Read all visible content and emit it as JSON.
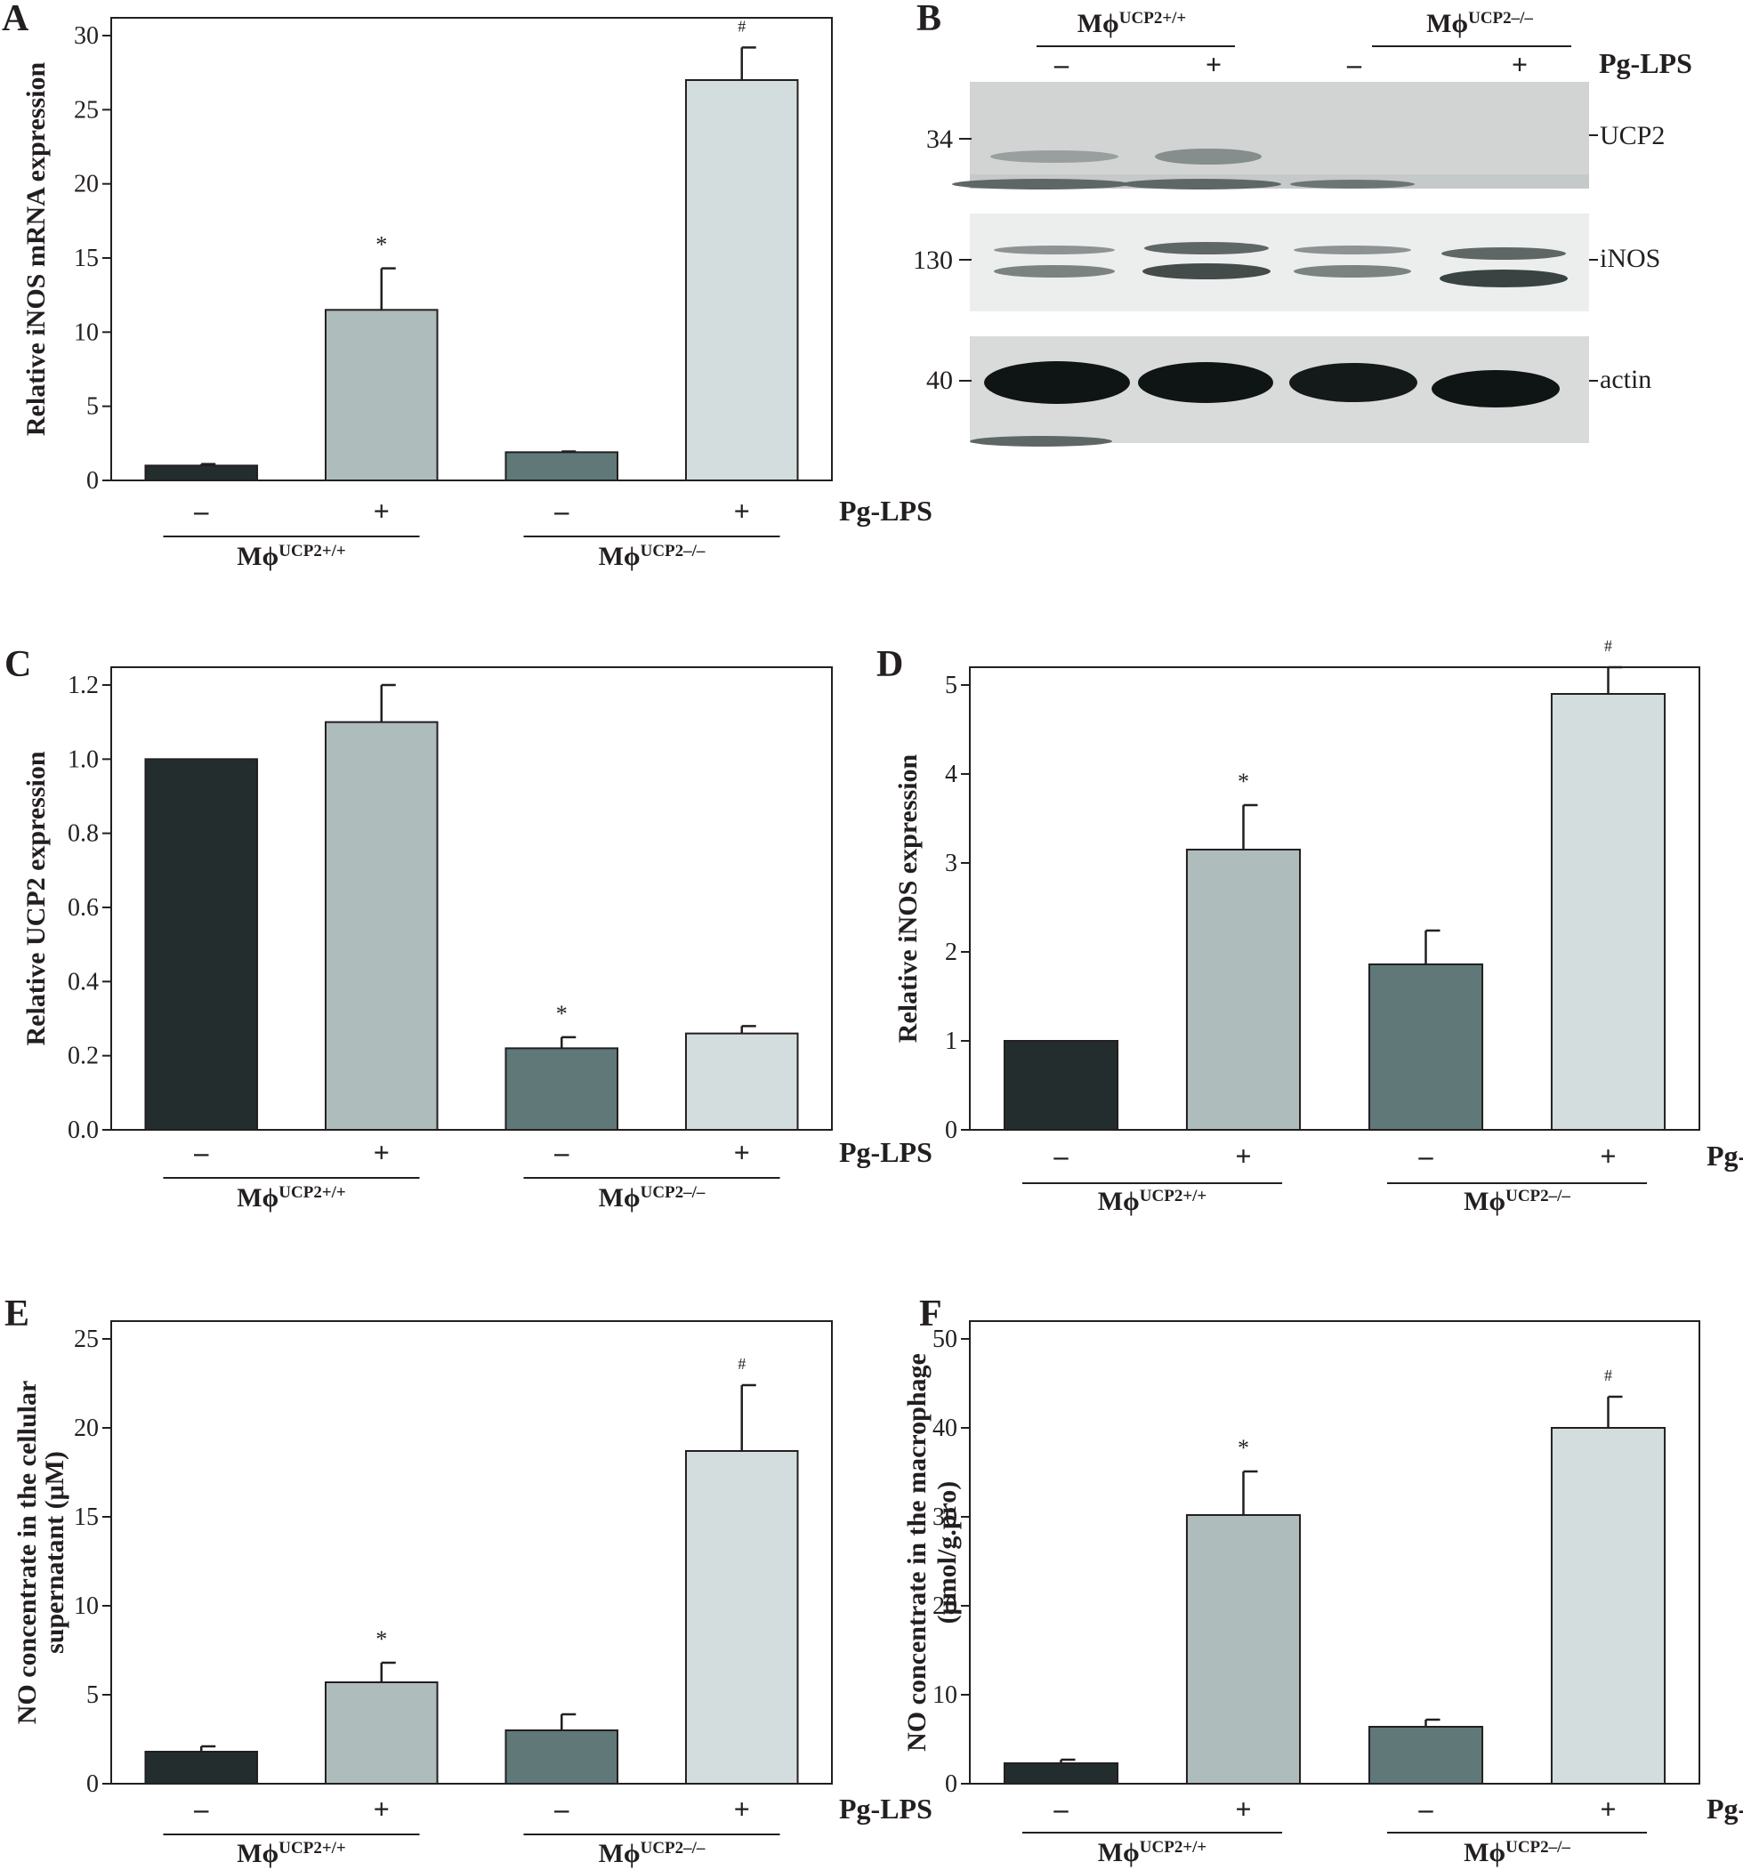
{
  "treatment_label": "Pg-LPS",
  "treatment_signs": [
    "–",
    "+",
    "–",
    "+"
  ],
  "groups": [
    {
      "base": "Mϕ",
      "sup": "UCP2+/+"
    },
    {
      "base": "Mϕ",
      "sup": "UCP2–/–"
    }
  ],
  "colors": {
    "wt_minus": "#232d2d",
    "wt_plus": "#aebcbc",
    "ko_minus": "#607878",
    "ko_plus": "#d4dddd"
  },
  "blot": {
    "letter": "B",
    "marker_labels": [
      "34",
      "130",
      "40"
    ],
    "band_labels": [
      "UCP2",
      "iNOS",
      "actin"
    ]
  },
  "chart_data": [
    {
      "letter": "A",
      "type": "bar",
      "ylabel": [
        "Relative iNOS mRNA expression"
      ],
      "ylim": [
        0,
        30
      ],
      "yticks": [
        0,
        5,
        10,
        15,
        20,
        25,
        30
      ],
      "categories": [
        "–",
        "+",
        "–",
        "+"
      ],
      "values": [
        1.0,
        11.5,
        1.9,
        27.0
      ],
      "errors": [
        0.1,
        2.8,
        0.05,
        2.2
      ],
      "sig": [
        "",
        "*",
        "",
        "#"
      ]
    },
    {
      "letter": "C",
      "type": "bar",
      "ylabel": [
        "Relative UCP2 expression"
      ],
      "ylim": [
        0,
        1.2
      ],
      "yticks": [
        0,
        0.2,
        0.4,
        0.6,
        0.8,
        1.0,
        1.2
      ],
      "categories": [
        "–",
        "+",
        "–",
        "+"
      ],
      "values": [
        1.0,
        1.1,
        0.22,
        0.26
      ],
      "errors": [
        0,
        0.1,
        0.03,
        0.02
      ],
      "sig": [
        "",
        "",
        "*",
        ""
      ]
    },
    {
      "letter": "D",
      "type": "bar",
      "ylabel": [
        "Relative iNOS expression"
      ],
      "ylim": [
        0,
        5
      ],
      "yticks": [
        0,
        1,
        2,
        3,
        4,
        5
      ],
      "categories": [
        "–",
        "+",
        "–",
        "+"
      ],
      "values": [
        1.0,
        3.15,
        1.86,
        4.9
      ],
      "errors": [
        0,
        0.5,
        0.38,
        0.3
      ],
      "sig": [
        "",
        "*",
        "",
        "#"
      ]
    },
    {
      "letter": "E",
      "type": "bar",
      "ylabel": [
        "NO concentrate in the cellular",
        "supernatant (μM)"
      ],
      "ylim": [
        0,
        25
      ],
      "yticks": [
        0,
        5,
        10,
        15,
        20,
        25
      ],
      "categories": [
        "–",
        "+",
        "–",
        "+"
      ],
      "values": [
        1.8,
        5.7,
        3.0,
        18.7
      ],
      "errors": [
        0.3,
        1.1,
        0.9,
        3.7
      ],
      "sig": [
        "",
        "*",
        "",
        "#"
      ]
    },
    {
      "letter": "F",
      "type": "bar",
      "ylabel": [
        "NO concentrate in the macrophage",
        "(μmol/g.pro)"
      ],
      "ylim": [
        0,
        50
      ],
      "yticks": [
        0,
        10,
        20,
        30,
        40,
        50
      ],
      "categories": [
        "–",
        "+",
        "–",
        "+"
      ],
      "values": [
        2.3,
        30.2,
        6.4,
        40.0
      ],
      "errors": [
        0.4,
        4.9,
        0.8,
        3.5
      ],
      "sig": [
        "",
        "*",
        "",
        "#"
      ]
    }
  ]
}
